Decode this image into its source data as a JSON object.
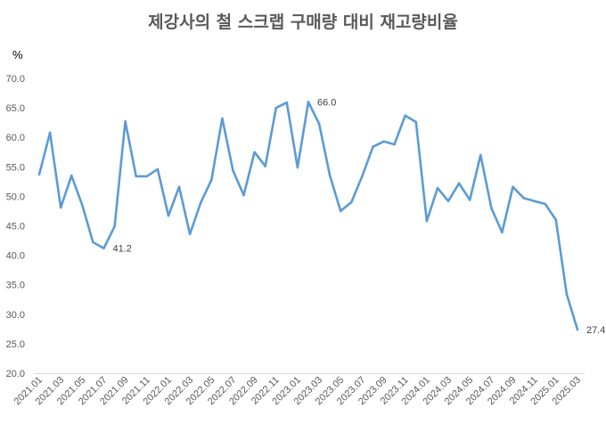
{
  "chart_data": {
    "type": "line",
    "title": "제강사의 철 스크랩 구매량 대비 재고량비율",
    "ylabel": "%",
    "xlabel": "",
    "ylim": [
      20,
      70
    ],
    "yticks": [
      "20.0",
      "25.0",
      "30.0",
      "35.0",
      "40.0",
      "45.0",
      "50.0",
      "55.0",
      "60.0",
      "65.0",
      "70.0"
    ],
    "grid": false,
    "x": [
      "2021.01",
      "2021.02",
      "2021.03",
      "2021.04",
      "2021.05",
      "2021.06",
      "2021.07",
      "2021.08",
      "2021.09",
      "2021.10",
      "2021.11",
      "2021.12",
      "2022.01",
      "2022.02",
      "2022.03",
      "2022.04",
      "2022.05",
      "2022.06",
      "2022.07",
      "2022.08",
      "2022.09",
      "2022.10",
      "2022.11",
      "2022.12",
      "2023.01",
      "2023.02",
      "2023.03",
      "2023.04",
      "2023.05",
      "2023.06",
      "2023.07",
      "2023.08",
      "2023.09",
      "2023.10",
      "2023.11",
      "2023.12",
      "2024.01",
      "2024.02",
      "2024.03",
      "2024.04",
      "2024.05",
      "2024.06",
      "2024.07",
      "2024.08",
      "2024.09",
      "2024.10",
      "2024.11",
      "2024.12",
      "2025.01",
      "2025.02",
      "2025.03"
    ],
    "series": [
      {
        "name": "재고량비율",
        "color": "#5b9bd5",
        "values": [
          53.7,
          60.8,
          48.1,
          53.5,
          48.5,
          42.2,
          41.2,
          44.9,
          62.7,
          53.4,
          53.4,
          54.6,
          46.7,
          51.6,
          43.6,
          48.9,
          52.8,
          63.2,
          54.4,
          50.2,
          57.5,
          55.1,
          65.0,
          65.9,
          54.9,
          66.0,
          62.3,
          53.5,
          47.5,
          49.0,
          53.4,
          58.4,
          59.3,
          58.8,
          63.7,
          62.6,
          45.8,
          51.4,
          49.2,
          52.2,
          49.4,
          57.0,
          48.0,
          43.9,
          51.6,
          49.7,
          49.2,
          48.7,
          46.0,
          33.4,
          27.4
        ]
      }
    ],
    "annotations": [
      {
        "index": 6,
        "text": "41.2"
      },
      {
        "index": 25,
        "text": "66.0"
      },
      {
        "index": 50,
        "text": "27.4"
      }
    ]
  }
}
